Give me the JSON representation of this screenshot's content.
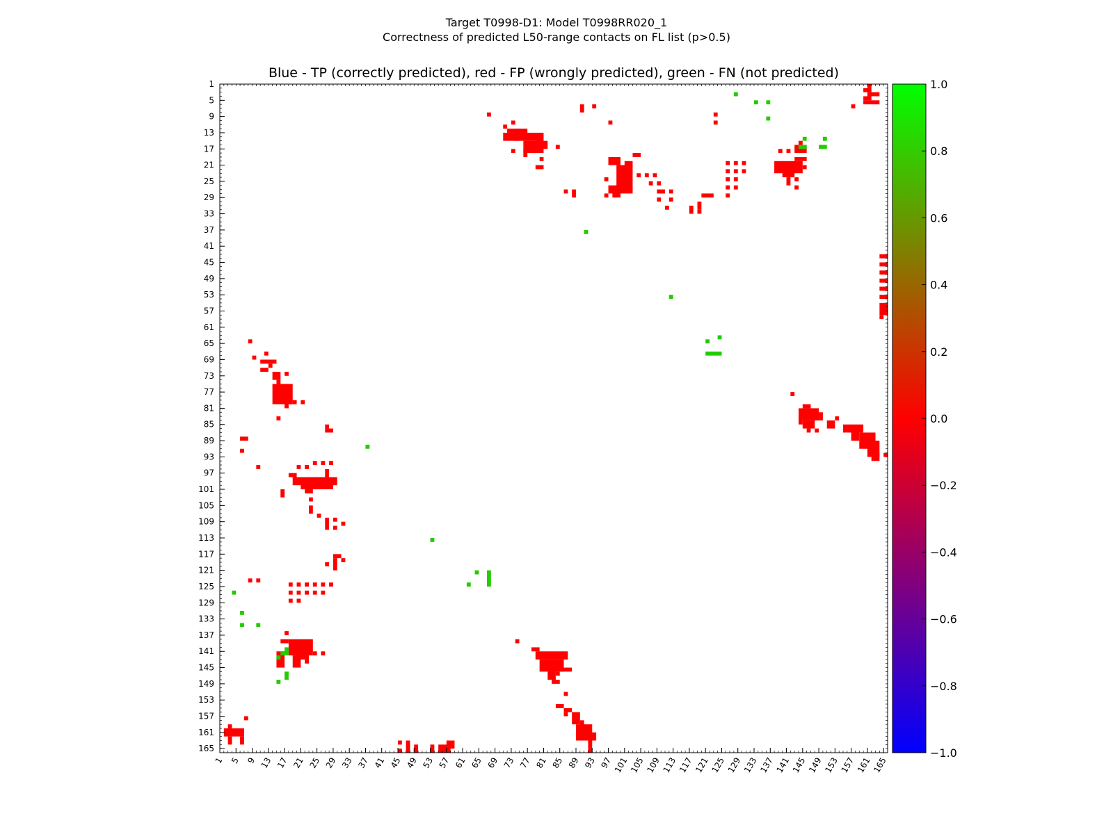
{
  "figure": {
    "title_line1": "Target T0998-D1: Model T0998RR020_1",
    "title_line2": "Correctness of predicted L50-range contacts on FL list (p>0.5)",
    "plot_title": "Blue - TP (correctly predicted), red - FP (wrongly predicted), green - FN (not predicted)"
  },
  "chart_data": {
    "type": "heatmap",
    "title": "Blue - TP (correctly predicted), red - FP (wrongly predicted), green - FN (not predicted)",
    "xlabel": "",
    "ylabel": "",
    "xlim": [
      1,
      166
    ],
    "ylim": [
      1,
      166
    ],
    "y_inverted": true,
    "tick_labels": [
      1,
      5,
      9,
      13,
      17,
      21,
      25,
      29,
      33,
      37,
      41,
      45,
      49,
      53,
      57,
      61,
      65,
      69,
      73,
      77,
      81,
      85,
      89,
      93,
      97,
      101,
      105,
      109,
      113,
      117,
      121,
      125,
      129,
      133,
      137,
      141,
      145,
      149,
      153,
      157,
      161,
      165
    ],
    "colorbar": {
      "range": [
        -1.0,
        1.0
      ],
      "ticks": [
        "1.0",
        "0.8",
        "0.6",
        "0.4",
        "0.2",
        "0.0",
        "−0.2",
        "−0.4",
        "−0.6",
        "−0.8",
        "−1.0"
      ],
      "colors": [
        "#00ff00",
        "#ff0000",
        "#0000ff"
      ]
    },
    "categories": {
      "FP": {
        "value": 0.0,
        "color": "#ff0000"
      },
      "FN": {
        "value": 1.0,
        "color": "#22cc00"
      },
      "TP": {
        "value": -1.0,
        "color": "#0000ff"
      }
    },
    "fp_blocks": [
      [
        67,
        8,
        68,
        9
      ],
      [
        71,
        11,
        72,
        12
      ],
      [
        73,
        10,
        74,
        11
      ],
      [
        72,
        12,
        77,
        13
      ],
      [
        74,
        12,
        75,
        15
      ],
      [
        71,
        13,
        81,
        15
      ],
      [
        76,
        15,
        81,
        18
      ],
      [
        79,
        15,
        82,
        17
      ],
      [
        76,
        17,
        77,
        19
      ],
      [
        73,
        17,
        74,
        18
      ],
      [
        78,
        17,
        79,
        18
      ],
      [
        80,
        19,
        81,
        20
      ],
      [
        79,
        21,
        81,
        22
      ],
      [
        84,
        16,
        85,
        17
      ],
      [
        90,
        6,
        91,
        8
      ],
      [
        93,
        6,
        94,
        7
      ],
      [
        97,
        10,
        98,
        11
      ],
      [
        97,
        19,
        100,
        21
      ],
      [
        99,
        21,
        103,
        27
      ],
      [
        101,
        20,
        103,
        22
      ],
      [
        96,
        24,
        97,
        25
      ],
      [
        97,
        26,
        103,
        28
      ],
      [
        98,
        27,
        100,
        29
      ],
      [
        96,
        28,
        97,
        29
      ],
      [
        103,
        18,
        105,
        19
      ],
      [
        104,
        23,
        105,
        24
      ],
      [
        106,
        23,
        107,
        24
      ],
      [
        108,
        23,
        109,
        24
      ],
      [
        107,
        25,
        108,
        26
      ],
      [
        109,
        25,
        110,
        26
      ],
      [
        109,
        27,
        111,
        28
      ],
      [
        112,
        27,
        113,
        28
      ],
      [
        109,
        29,
        110,
        30
      ],
      [
        112,
        29,
        113,
        30
      ],
      [
        111,
        31,
        112,
        32
      ],
      [
        86,
        27,
        87,
        28
      ],
      [
        88,
        27,
        89,
        29
      ],
      [
        123,
        8,
        124,
        9
      ],
      [
        123,
        10,
        124,
        11
      ],
      [
        126,
        20,
        127,
        21
      ],
      [
        128,
        20,
        129,
        21
      ],
      [
        130,
        20,
        131,
        21
      ],
      [
        126,
        22,
        127,
        23
      ],
      [
        128,
        22,
        129,
        23
      ],
      [
        130,
        22,
        131,
        23
      ],
      [
        126,
        24,
        127,
        25
      ],
      [
        128,
        24,
        129,
        25
      ],
      [
        126,
        26,
        127,
        27
      ],
      [
        128,
        26,
        129,
        27
      ],
      [
        126,
        28,
        127,
        29
      ],
      [
        120,
        28,
        123,
        29
      ],
      [
        119,
        30,
        120,
        32
      ],
      [
        117,
        31,
        118,
        33
      ],
      [
        119,
        32,
        120,
        33
      ],
      [
        139,
        17,
        140,
        18
      ],
      [
        141,
        17,
        142,
        18
      ],
      [
        143,
        16,
        146,
        18
      ],
      [
        144,
        15,
        145,
        16
      ],
      [
        143,
        19,
        146,
        20
      ],
      [
        138,
        20,
        145,
        23
      ],
      [
        140,
        21,
        143,
        24
      ],
      [
        141,
        24,
        142,
        26
      ],
      [
        143,
        24,
        144,
        25
      ],
      [
        143,
        26,
        144,
        27
      ],
      [
        145,
        21,
        146,
        22
      ],
      [
        161,
        1,
        162,
        2
      ],
      [
        160,
        2,
        162,
        3
      ],
      [
        161,
        3,
        164,
        4
      ],
      [
        160,
        4,
        162,
        5
      ],
      [
        160,
        5,
        164,
        6
      ],
      [
        157,
        6,
        158,
        7
      ],
      [
        164,
        43,
        166,
        44
      ],
      [
        164,
        45,
        166,
        46
      ],
      [
        164,
        47,
        166,
        48
      ],
      [
        164,
        49,
        166,
        50
      ],
      [
        164,
        51,
        166,
        52
      ],
      [
        164,
        53,
        166,
        54
      ],
      [
        164,
        55,
        166,
        58
      ],
      [
        164,
        58,
        165,
        59
      ],
      [
        8,
        64,
        9,
        65
      ],
      [
        9,
        68,
        10,
        69
      ],
      [
        12,
        67,
        13,
        68
      ],
      [
        11,
        69,
        15,
        70
      ],
      [
        13,
        70,
        14,
        71
      ],
      [
        11,
        71,
        13,
        72
      ],
      [
        14,
        72,
        16,
        74
      ],
      [
        15,
        74,
        16,
        75
      ],
      [
        17,
        72,
        18,
        73
      ],
      [
        14,
        75,
        19,
        80
      ],
      [
        17,
        77,
        18,
        81
      ],
      [
        18,
        79,
        19,
        80
      ],
      [
        19,
        79,
        20,
        80
      ],
      [
        21,
        79,
        22,
        80
      ],
      [
        15,
        83,
        16,
        84
      ],
      [
        6,
        88,
        8,
        89
      ],
      [
        6,
        91,
        7,
        92
      ],
      [
        10,
        95,
        11,
        96
      ],
      [
        27,
        85,
        28,
        86
      ],
      [
        27,
        86,
        29,
        87
      ],
      [
        18,
        97,
        20,
        98
      ],
      [
        19,
        98,
        30,
        100
      ],
      [
        21,
        99,
        29,
        101
      ],
      [
        22,
        101,
        24,
        102
      ],
      [
        20,
        95,
        21,
        96
      ],
      [
        22,
        95,
        23,
        96
      ],
      [
        24,
        94,
        25,
        95
      ],
      [
        26,
        94,
        27,
        95
      ],
      [
        27,
        96,
        28,
        98
      ],
      [
        28,
        94,
        29,
        95
      ],
      [
        16,
        101,
        17,
        103
      ],
      [
        23,
        103,
        24,
        104
      ],
      [
        23,
        105,
        24,
        107
      ],
      [
        25,
        107,
        26,
        108
      ],
      [
        27,
        108,
        28,
        110
      ],
      [
        29,
        108,
        30,
        109
      ],
      [
        31,
        109,
        32,
        110
      ],
      [
        27,
        110,
        28,
        111
      ],
      [
        29,
        110,
        30,
        111
      ],
      [
        29,
        117,
        31,
        118
      ],
      [
        31,
        118,
        32,
        119
      ],
      [
        29,
        118,
        30,
        121
      ],
      [
        27,
        119,
        28,
        120
      ],
      [
        8,
        123,
        9,
        124
      ],
      [
        10,
        123,
        11,
        124
      ],
      [
        18,
        124,
        19,
        125
      ],
      [
        20,
        124,
        21,
        125
      ],
      [
        22,
        124,
        23,
        125
      ],
      [
        24,
        124,
        25,
        125
      ],
      [
        26,
        124,
        27,
        125
      ],
      [
        28,
        124,
        29,
        125
      ],
      [
        18,
        126,
        19,
        127
      ],
      [
        20,
        126,
        21,
        127
      ],
      [
        22,
        126,
        23,
        127
      ],
      [
        24,
        126,
        25,
        127
      ],
      [
        26,
        126,
        27,
        127
      ],
      [
        18,
        128,
        19,
        129
      ],
      [
        20,
        128,
        21,
        129
      ],
      [
        17,
        136,
        18,
        137
      ],
      [
        16,
        138,
        18,
        139
      ],
      [
        18,
        138,
        24,
        142
      ],
      [
        20,
        140,
        23,
        143
      ],
      [
        15,
        141,
        17,
        145
      ],
      [
        19,
        142,
        21,
        145
      ],
      [
        22,
        143,
        23,
        144
      ],
      [
        24,
        141,
        25,
        142
      ],
      [
        26,
        141,
        27,
        142
      ],
      [
        74,
        138,
        75,
        139
      ],
      [
        78,
        140,
        80,
        141
      ],
      [
        79,
        141,
        87,
        143
      ],
      [
        80,
        143,
        86,
        146
      ],
      [
        82,
        145,
        84,
        148
      ],
      [
        85,
        145,
        88,
        146
      ],
      [
        84,
        146,
        85,
        147
      ],
      [
        83,
        148,
        85,
        149
      ],
      [
        86,
        151,
        87,
        152
      ],
      [
        84,
        154,
        86,
        155
      ],
      [
        86,
        155,
        88,
        156
      ],
      [
        88,
        156,
        90,
        159
      ],
      [
        86,
        156,
        87,
        157
      ],
      [
        90,
        158,
        91,
        160
      ],
      [
        89,
        159,
        93,
        163
      ],
      [
        91,
        161,
        94,
        163
      ],
      [
        92,
        162,
        93,
        165
      ],
      [
        92,
        165,
        93,
        166
      ],
      [
        142,
        77,
        143,
        78
      ],
      [
        145,
        80,
        147,
        81
      ],
      [
        144,
        81,
        149,
        84
      ],
      [
        145,
        84,
        148,
        86
      ],
      [
        144,
        83,
        145,
        85
      ],
      [
        146,
        86,
        147,
        87
      ],
      [
        148,
        86,
        149,
        87
      ],
      [
        149,
        82,
        150,
        84
      ],
      [
        151,
        84,
        153,
        86
      ],
      [
        153,
        83,
        154,
        84
      ],
      [
        155,
        85,
        160,
        87
      ],
      [
        157,
        86,
        159,
        89
      ],
      [
        159,
        87,
        163,
        91
      ],
      [
        161,
        89,
        164,
        93
      ],
      [
        162,
        92,
        164,
        94
      ],
      [
        165,
        92,
        166,
        93
      ],
      [
        2,
        160,
        7,
        162
      ],
      [
        3,
        159,
        4,
        160
      ],
      [
        3,
        162,
        4,
        164
      ],
      [
        6,
        162,
        7,
        164
      ],
      [
        7,
        157,
        8,
        158
      ],
      [
        45,
        163,
        46,
        164
      ],
      [
        45,
        165,
        46,
        166
      ],
      [
        47,
        163,
        48,
        166
      ],
      [
        49,
        164,
        50,
        166
      ],
      [
        53,
        164,
        54,
        166
      ],
      [
        55,
        164,
        58,
        166
      ],
      [
        57,
        163,
        59,
        165
      ]
    ],
    "fn_blocks": [
      [
        128,
        3,
        129,
        4
      ],
      [
        133,
        5,
        134,
        6
      ],
      [
        136,
        5,
        137,
        6
      ],
      [
        136,
        9,
        137,
        10
      ],
      [
        145,
        14,
        146,
        15
      ],
      [
        150,
        14,
        151,
        15
      ],
      [
        144,
        16,
        146,
        17
      ],
      [
        149,
        16,
        151,
        17
      ],
      [
        91,
        37,
        92,
        38
      ],
      [
        112,
        53,
        113,
        54
      ],
      [
        121,
        64,
        122,
        65
      ],
      [
        124,
        63,
        125,
        64
      ],
      [
        121,
        67,
        125,
        68
      ],
      [
        4,
        126,
        5,
        127
      ],
      [
        6,
        131,
        7,
        132
      ],
      [
        6,
        134,
        7,
        135
      ],
      [
        10,
        134,
        11,
        135
      ],
      [
        15,
        142,
        16,
        143
      ],
      [
        16,
        141,
        17,
        142
      ],
      [
        17,
        140,
        18,
        142
      ],
      [
        15,
        148,
        16,
        149
      ],
      [
        17,
        146,
        18,
        148
      ],
      [
        37,
        90,
        38,
        91
      ],
      [
        53,
        113,
        54,
        114
      ],
      [
        62,
        124,
        63,
        125
      ],
      [
        64,
        121,
        65,
        122
      ],
      [
        67,
        121,
        68,
        125
      ]
    ]
  }
}
